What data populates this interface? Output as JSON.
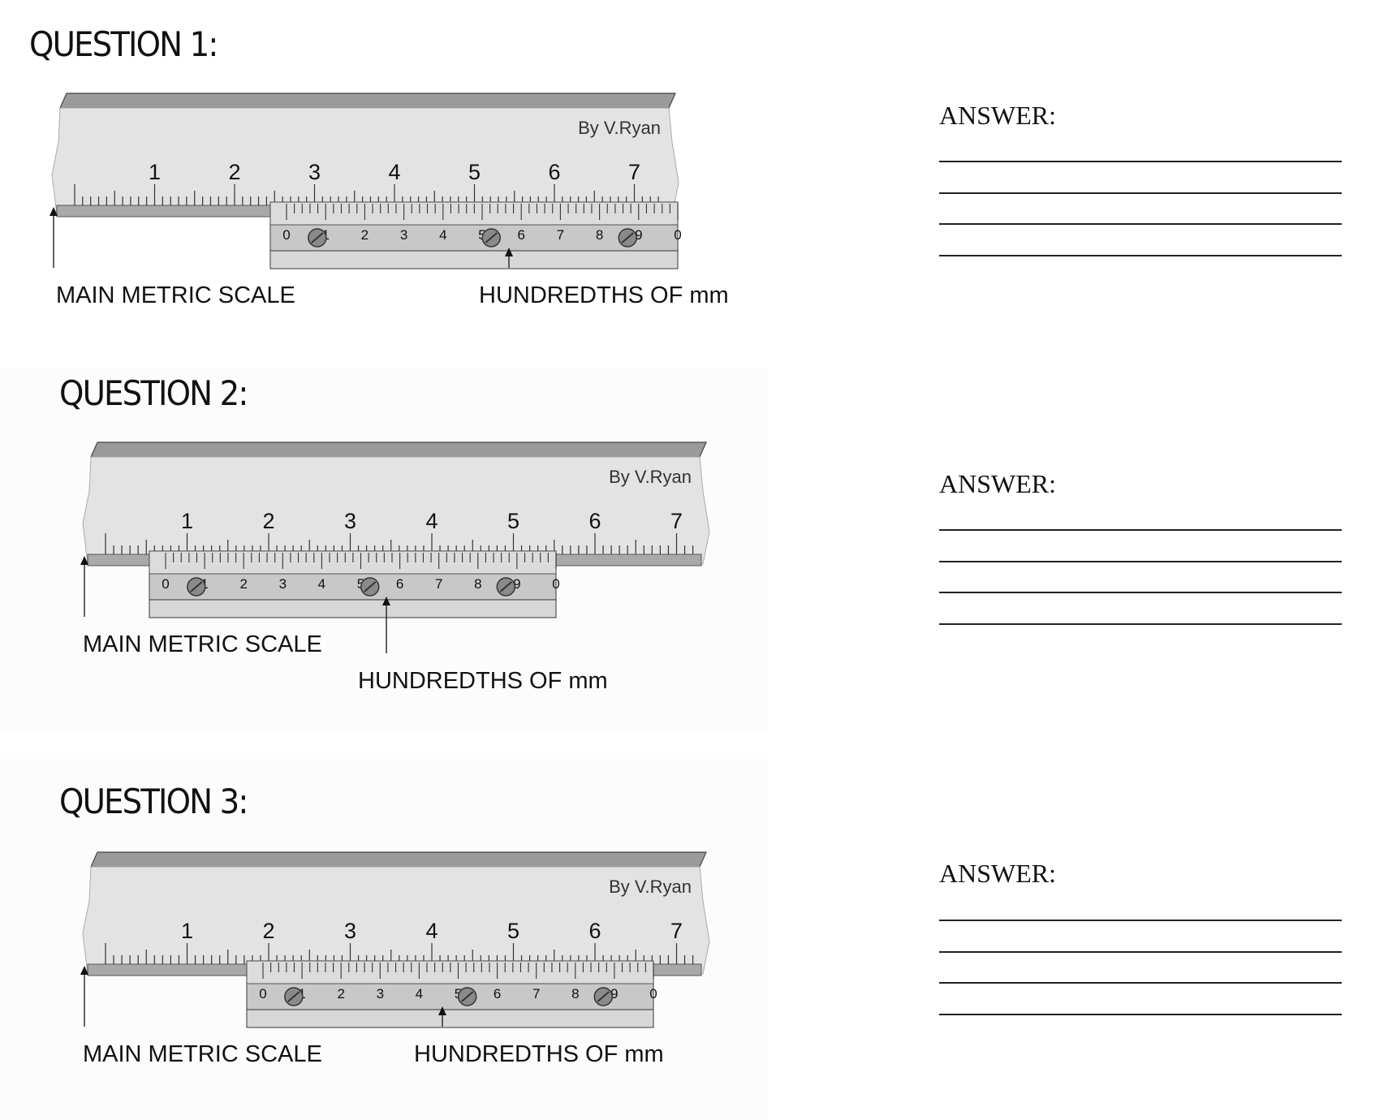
{
  "questions": [
    {
      "title": "QUESTION 1:",
      "answer_label": "ANSWER:",
      "credit": "By V.Ryan",
      "main_scale_label": "MAIN METRIC SCALE",
      "vernier_label": "HUNDREDTHS OF mm",
      "main_numbers": [
        "1",
        "2",
        "3",
        "4",
        "5",
        "6",
        "7"
      ],
      "vernier_numbers": [
        "0",
        "1",
        "2",
        "3",
        "4",
        "5",
        "6",
        "7",
        "8",
        "9",
        "0"
      ]
    },
    {
      "title": "QUESTION 2:",
      "answer_label": "ANSWER:",
      "credit": "By V.Ryan",
      "main_scale_label": "MAIN METRIC SCALE",
      "vernier_label": "HUNDREDTHS OF mm",
      "main_numbers": [
        "1",
        "2",
        "3",
        "4",
        "5",
        "6",
        "7"
      ],
      "vernier_numbers": [
        "0",
        "1",
        "2",
        "3",
        "4",
        "5",
        "6",
        "7",
        "8",
        "9",
        "0"
      ]
    },
    {
      "title": "QUESTION 3:",
      "answer_label": "ANSWER:",
      "credit": "By V.Ryan",
      "main_scale_label": "MAIN METRIC SCALE",
      "vernier_label": "HUNDREDTHS OF mm",
      "main_numbers": [
        "1",
        "2",
        "3",
        "4",
        "5",
        "6",
        "7"
      ],
      "vernier_numbers": [
        "0",
        "1",
        "2",
        "3",
        "4",
        "5",
        "6",
        "7",
        "8",
        "9",
        "0"
      ]
    }
  ]
}
